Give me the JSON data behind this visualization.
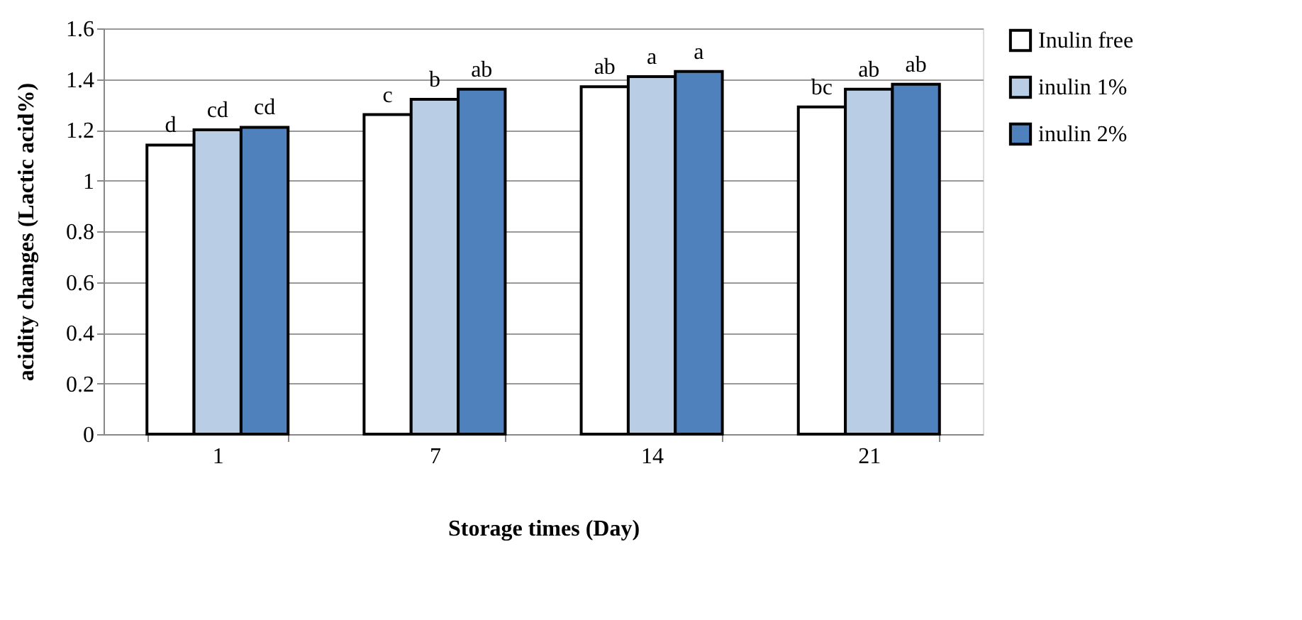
{
  "chart_data": {
    "type": "bar",
    "xlabel": "Storage times (Day)",
    "ylabel": "acidity changes (Lactic acid%)",
    "categories": [
      "1",
      "7",
      "14",
      "21"
    ],
    "series": [
      {
        "name": "Inulin free",
        "color": "#ffffff",
        "values": [
          1.14,
          1.26,
          1.37,
          1.29
        ],
        "value_labels": [
          "d",
          "c",
          "ab",
          "bc"
        ]
      },
      {
        "name": "inulin 1%",
        "color": "#b9cde5",
        "values": [
          1.2,
          1.32,
          1.41,
          1.36
        ],
        "value_labels": [
          "cd",
          "b",
          "a",
          "ab"
        ]
      },
      {
        "name": "inulin 2%",
        "color": "#4f81bd",
        "values": [
          1.21,
          1.36,
          1.43,
          1.38
        ],
        "value_labels": [
          "cd",
          "ab",
          "a",
          "ab"
        ]
      }
    ],
    "ylim": [
      0,
      1.6
    ],
    "yticks": [
      0,
      0.2,
      0.4,
      0.6,
      0.8,
      1,
      1.2,
      1.4,
      1.6
    ],
    "grid": "y",
    "legend": "right"
  }
}
